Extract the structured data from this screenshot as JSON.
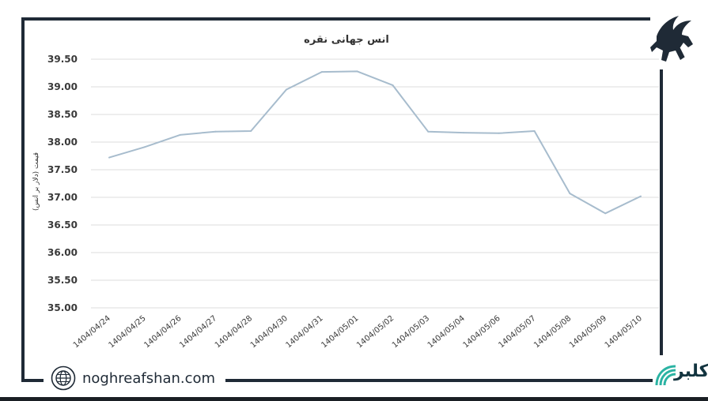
{
  "site": {
    "url_text": "noghreafshan.com"
  },
  "logos": {
    "corner_text": "کلبر"
  },
  "colors": {
    "line": "#a7bccd",
    "grid": "#dcdcdc",
    "frame": "#1f2a36"
  },
  "icons": {
    "site": "globe-icon",
    "brand": "winged-horse-logo",
    "corner": "signal-logo"
  },
  "chart_data": {
    "type": "line",
    "title": "انس جهانی نقره",
    "xlabel": "",
    "ylabel": "قیمت (دلار بر انس)",
    "ylim": [
      35.0,
      39.5
    ],
    "yticks": [
      "35.00",
      "35.50",
      "36.00",
      "36.50",
      "37.00",
      "37.50",
      "38.00",
      "38.50",
      "39.00",
      "39.50"
    ],
    "grid": true,
    "categories": [
      "1404/04/24",
      "1404/04/25",
      "1404/04/26",
      "1404/04/27",
      "1404/04/28",
      "1404/04/30",
      "1404/04/31",
      "1404/05/01",
      "1404/05/02",
      "1404/05/03",
      "1404/05/04",
      "1404/05/06",
      "1404/05/07",
      "1404/05/08",
      "1404/05/09",
      "1404/05/10"
    ],
    "values": [
      37.72,
      37.91,
      38.13,
      38.19,
      38.2,
      38.95,
      39.27,
      39.28,
      39.03,
      38.19,
      38.17,
      38.16,
      38.2,
      37.07,
      36.71,
      37.02
    ]
  }
}
